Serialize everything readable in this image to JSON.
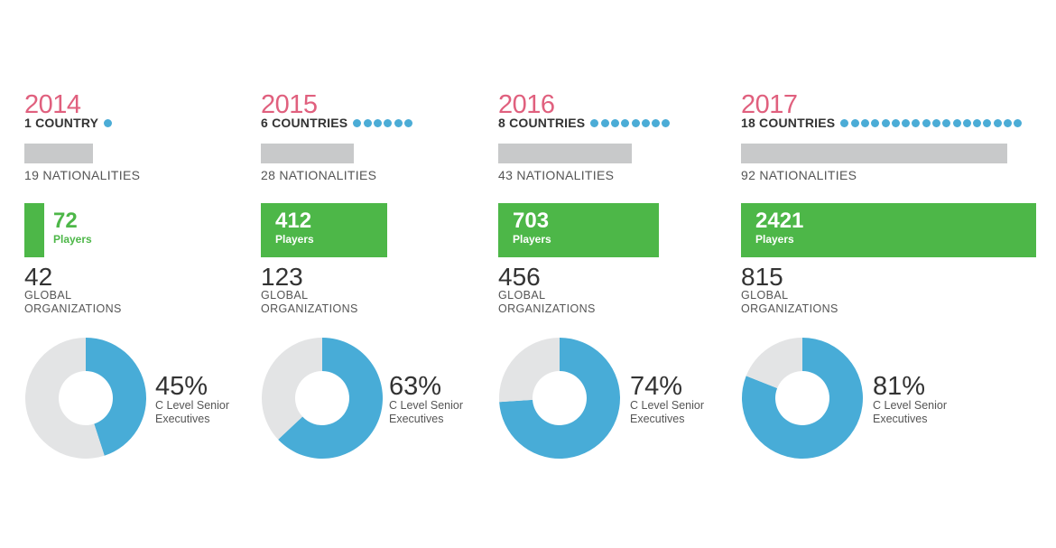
{
  "colors": {
    "year": "#e0607e",
    "dot": "#4bacd6",
    "nationality_bar": "#c8c9ca",
    "players_bar": "#4db748",
    "players_text_on_bar": "#ffffff",
    "players_text_off_bar": "#4db748",
    "donut_fill": "#48acd7",
    "donut_track": "#e3e4e5"
  },
  "labels": {
    "players": "Players",
    "global_org_line1": "GLOBAL",
    "global_org_line2": "ORGANIZATIONS",
    "exec_line1": "C Level Senior",
    "exec_line2": "Executives"
  },
  "chart_data": {
    "type": "table",
    "categories": [
      "2014",
      "2015",
      "2016",
      "2017"
    ],
    "series": [
      {
        "name": "COUNTRIES",
        "values": [
          1,
          6,
          8,
          18
        ]
      },
      {
        "name": "NATIONALITIES",
        "values": [
          19,
          28,
          43,
          92
        ]
      },
      {
        "name": "Players",
        "values": [
          72,
          412,
          703,
          2421
        ]
      },
      {
        "name": "GLOBAL ORGANIZATIONS",
        "values": [
          42,
          123,
          456,
          815
        ]
      },
      {
        "name": "C Level Senior Executives",
        "values": [
          45,
          63,
          74,
          81
        ]
      }
    ],
    "years": [
      {
        "year": "2014",
        "countries": 1,
        "countries_label": "1 COUNTRY",
        "nationalities": 19,
        "nationalities_label": "19 NATIONALITIES",
        "players": 72,
        "players_text": "72",
        "organizations": 42,
        "organizations_text": "42",
        "exec_pct": 45,
        "exec_pct_text": "45%"
      },
      {
        "year": "2015",
        "countries": 6,
        "countries_label": "6 COUNTRIES",
        "nationalities": 28,
        "nationalities_label": "28 NATIONALITIES",
        "players": 412,
        "players_text": "412",
        "organizations": 123,
        "organizations_text": "123",
        "exec_pct": 63,
        "exec_pct_text": "63%"
      },
      {
        "year": "2016",
        "countries": 8,
        "countries_label": "8 COUNTRIES",
        "nationalities": 43,
        "nationalities_label": "43 NATIONALITIES",
        "players": 703,
        "players_text": "703",
        "organizations": 456,
        "organizations_text": "456",
        "exec_pct": 74,
        "exec_pct_text": "74%"
      },
      {
        "year": "2017",
        "countries": 18,
        "countries_label": "18 COUNTRIES",
        "nationalities": 92,
        "nationalities_label": "92 NATIONALITIES",
        "players": 2421,
        "players_text": "2421",
        "organizations": 815,
        "organizations_text": "815",
        "exec_pct": 81,
        "exec_pct_text": "81%"
      }
    ]
  }
}
